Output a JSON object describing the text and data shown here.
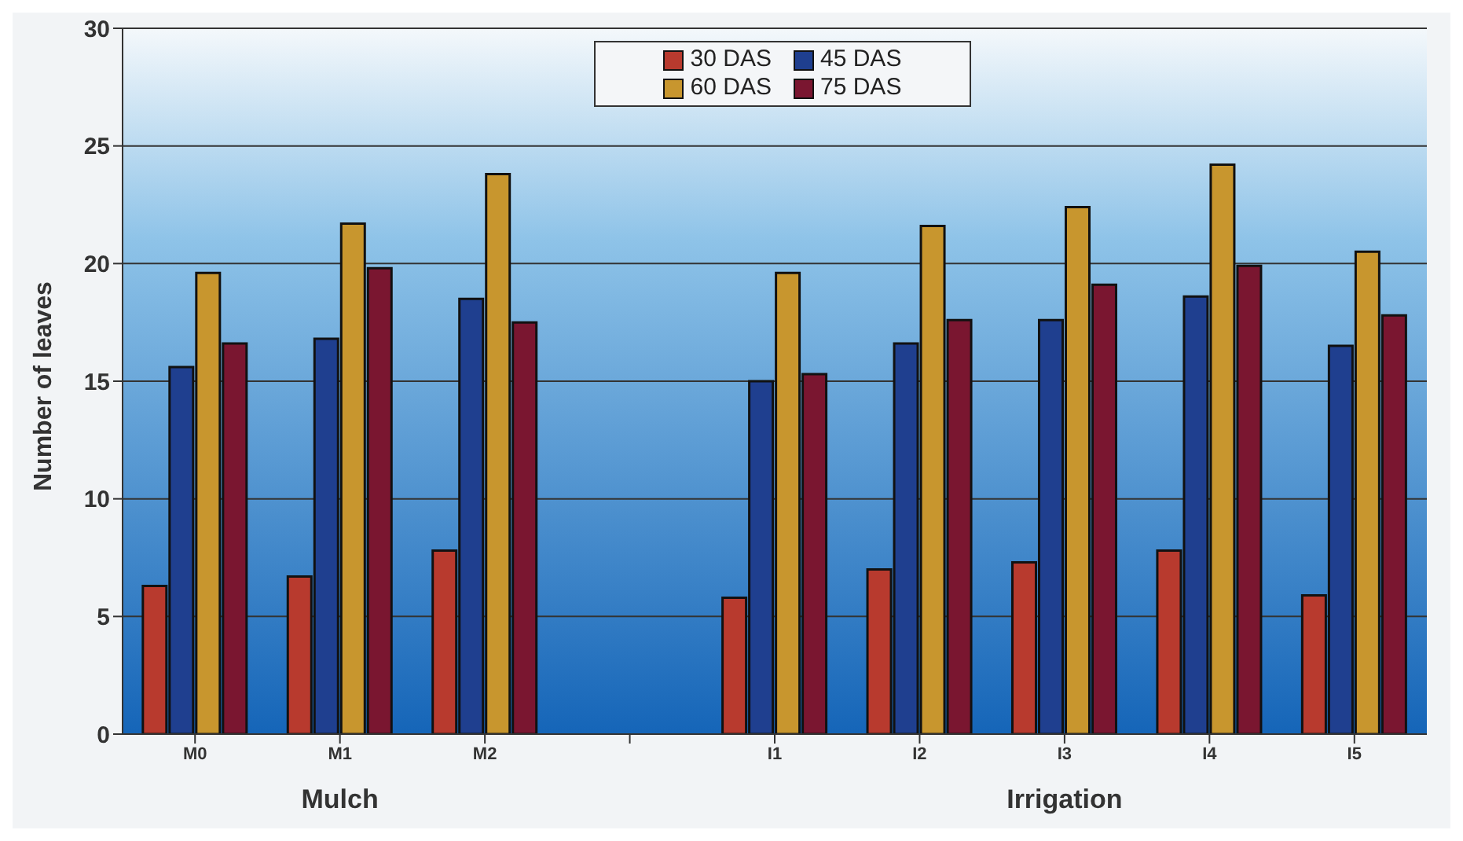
{
  "chart_data": {
    "type": "bar",
    "ylabel": "Number of leaves",
    "categories": [
      "M0",
      "M1",
      "M2",
      null,
      "I1",
      "I2",
      "I3",
      "I4",
      "I5"
    ],
    "series": [
      {
        "name": "30 DAS",
        "color": "#b83a2e",
        "values": [
          6.3,
          6.7,
          7.8,
          null,
          5.8,
          7.0,
          7.3,
          7.8,
          5.9
        ]
      },
      {
        "name": "45 DAS",
        "color": "#1f3f8f",
        "values": [
          15.6,
          16.8,
          18.5,
          null,
          15.0,
          16.6,
          17.6,
          18.6,
          16.5
        ]
      },
      {
        "name": "60 DAS",
        "color": "#c8962e",
        "values": [
          19.6,
          21.7,
          23.8,
          null,
          19.6,
          21.6,
          22.4,
          24.2,
          20.5
        ]
      },
      {
        "name": "75 DAS",
        "color": "#7a1630",
        "values": [
          16.6,
          19.8,
          17.5,
          null,
          15.3,
          17.6,
          19.1,
          19.9,
          17.8
        ]
      }
    ],
    "ylim": [
      0,
      30
    ],
    "yticks": [
      0,
      5,
      10,
      15,
      20,
      25,
      30
    ],
    "grid": "y",
    "legend": "top",
    "annotations": [
      "Mulch",
      "Irrigation"
    ]
  }
}
